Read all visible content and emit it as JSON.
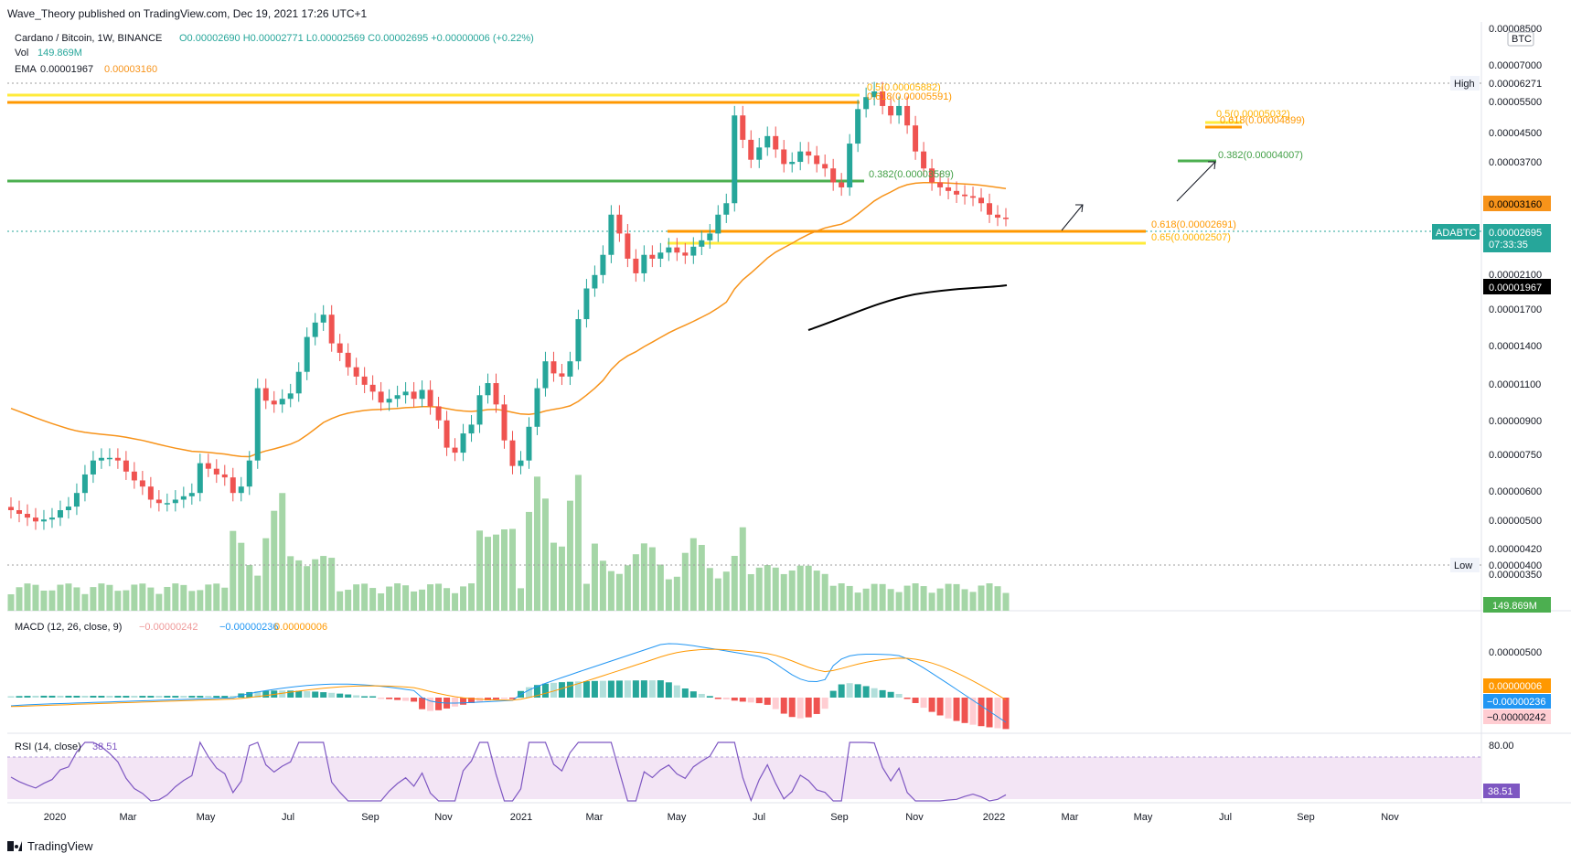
{
  "header": "Wave_Theory published on TradingView.com, Dec 19, 2021 17:26 UTC+1",
  "legend": {
    "symbol": "Cardano / Bitcoin, 1W, BINANCE",
    "ohlc": "O0.00002690 H0.00002771 L0.00002569 C0.00002695 +0.00000006 (+0.22%)",
    "vol_label": "Vol",
    "vol_value": "149.869M",
    "ema_label": "EMA",
    "ema_value1": "0.00001967",
    "ema_value2": "0.00003160",
    "macd_label": "MACD (12, 26, close, 9)",
    "macd_hist": "−0.00000242",
    "macd_line": "−0.00000236",
    "macd_signal": "0.00000006",
    "rsi_label": "RSI (14, close)",
    "rsi_value": "38.51"
  },
  "price_axis": {
    "currency": "BTC",
    "ticks": [
      "0.00008500",
      "0.00007000",
      "0.00005500",
      "0.00004500",
      "0.00003700",
      "0.00002100",
      "0.00001700",
      "0.00001400",
      "0.00001100",
      "0.00000900",
      "0.00000750",
      "0.00000600",
      "0.00000500",
      "0.00000420",
      "0.00000350"
    ],
    "high_label": "High",
    "high_value": "0.00006271",
    "low_label": "Low",
    "low_value": "0.00000400",
    "ema_orange": "0.00003160",
    "ema_black": "0.00001967",
    "symbol_tag": "ADABTC",
    "last_price": "0.00002695",
    "countdown": "07:33:35",
    "volume_tag": "149.869M",
    "macd_tick": "0.00000500",
    "macd_signal_tag": "0.00000006",
    "macd_line_tag": "−0.00000236",
    "macd_hist_tag": "−0.00000242",
    "rsi_tick": "80.00",
    "rsi_tag": "38.51"
  },
  "annotations": {
    "fib_top_a": "0.5(0.00005882)",
    "fib_top_b": "0.618(0.00005591)",
    "fib_green_mid": "0.382(0.00003589)",
    "fib_right_a": "0.5(0.00005032)",
    "fib_right_b": "0.618(0.00004899)",
    "fib_right_green": "0.382(0.00004007)",
    "fib_618": "0.618(0.00002691)",
    "fib_65": "0.65(0.00002507)"
  },
  "time_axis": [
    "2020",
    "Mar",
    "May",
    "Jul",
    "Sep",
    "Nov",
    "2021",
    "Mar",
    "May",
    "Jul",
    "Sep",
    "Nov",
    "2022",
    "Mar",
    "May",
    "Jul",
    "Sep",
    "Nov"
  ],
  "footer": "TradingView",
  "colors": {
    "up": "#26a69a",
    "down": "#ef5350",
    "vol": "#a5d6a7",
    "ema_orange": "#f7931a",
    "ema_black": "#000000",
    "fib_yellow": "#ffeb3b",
    "fib_orange": "#ff9800",
    "fib_green": "#4caf50",
    "macd_line": "#2196f3",
    "signal": "#ff9800",
    "rsi": "#7e57c2",
    "rsi_band": "#f3e5f5"
  },
  "chart_data": {
    "type": "candlestick",
    "title": "Cardano / Bitcoin, 1W, BINANCE",
    "y_scale": "log",
    "ylim": [
      3.5e-06,
      8.5e-06
    ],
    "interval": "1W",
    "note_axis_range": "Dec 2019 – Dec 2021 weekly",
    "close": [
      4.5e-06,
      4.4e-06,
      4.3e-06,
      4.2e-06,
      4.25e-06,
      4.3e-06,
      4.5e-06,
      4.6e-06,
      5e-06,
      5.6e-06,
      6.1e-06,
      6.2e-06,
      6.2e-06,
      6.1e-06,
      5.7e-06,
      5.4e-06,
      5.2e-06,
      4.8e-06,
      4.7e-06,
      4.7e-06,
      4.8e-06,
      4.9e-06,
      5e-06,
      6e-06,
      5.8e-06,
      5.6e-06,
      5.5e-06,
      5e-06,
      5.2e-06,
      6.1e-06,
      9.5e-06,
      8.8e-06,
      8.6e-06,
      8.9e-06,
      9.2e-06,
      1.05e-05,
      1.3e-05,
      1.42e-05,
      1.49e-05,
      1.25e-05,
      1.18e-05,
      1.08e-05,
      1.02e-05,
      9.7e-06,
      9.3e-06,
      8.7e-06,
      8.9e-06,
      9.1e-06,
      9.3e-06,
      8.9e-06,
      9.4e-06,
      8.5e-06,
      7.8e-06,
      6.6e-06,
      6.4e-06,
      7.2e-06,
      7.6e-06,
      9.1e-06,
      9.8e-06,
      8.6e-06,
      6.9e-06,
      5.9e-06,
      6.1e-06,
      7.5e-06,
      9.5e-06,
      1.12e-05,
      1.04e-05,
      1.02e-05,
      1.12e-05,
      1.45e-05,
      1.75e-05,
      1.9e-05,
      2.15e-05,
      2.75e-05,
      2.45e-05,
      2.1e-05,
      1.92e-05,
      2.15e-05,
      2.1e-05,
      2.18e-05,
      2.25e-05,
      2.18e-05,
      2.14e-05,
      2.26e-05,
      2.35e-05,
      2.45e-05,
      2.75e-05,
      2.95e-05,
      5.05e-05,
      4.35e-05,
      3.85e-05,
      4.15e-05,
      4.45e-05,
      4.1e-05,
      3.75e-05,
      3.8e-05,
      4.05e-05,
      3.95e-05,
      3.75e-05,
      3.65e-05,
      3.35e-05,
      3.25e-05,
      4.25e-05,
      5.25e-05,
      5.65e-05,
      5.85e-05,
      5.35e-05,
      5.05e-05,
      5.35e-05,
      4.75e-05,
      4.05e-05,
      3.65e-05,
      3.35e-05,
      3.25e-05,
      3.18e-05,
      3.11e-05,
      3.08e-05,
      3.05e-05,
      2.95e-05,
      2.75e-05,
      2.7e-05,
      2.695e-05
    ]
  }
}
